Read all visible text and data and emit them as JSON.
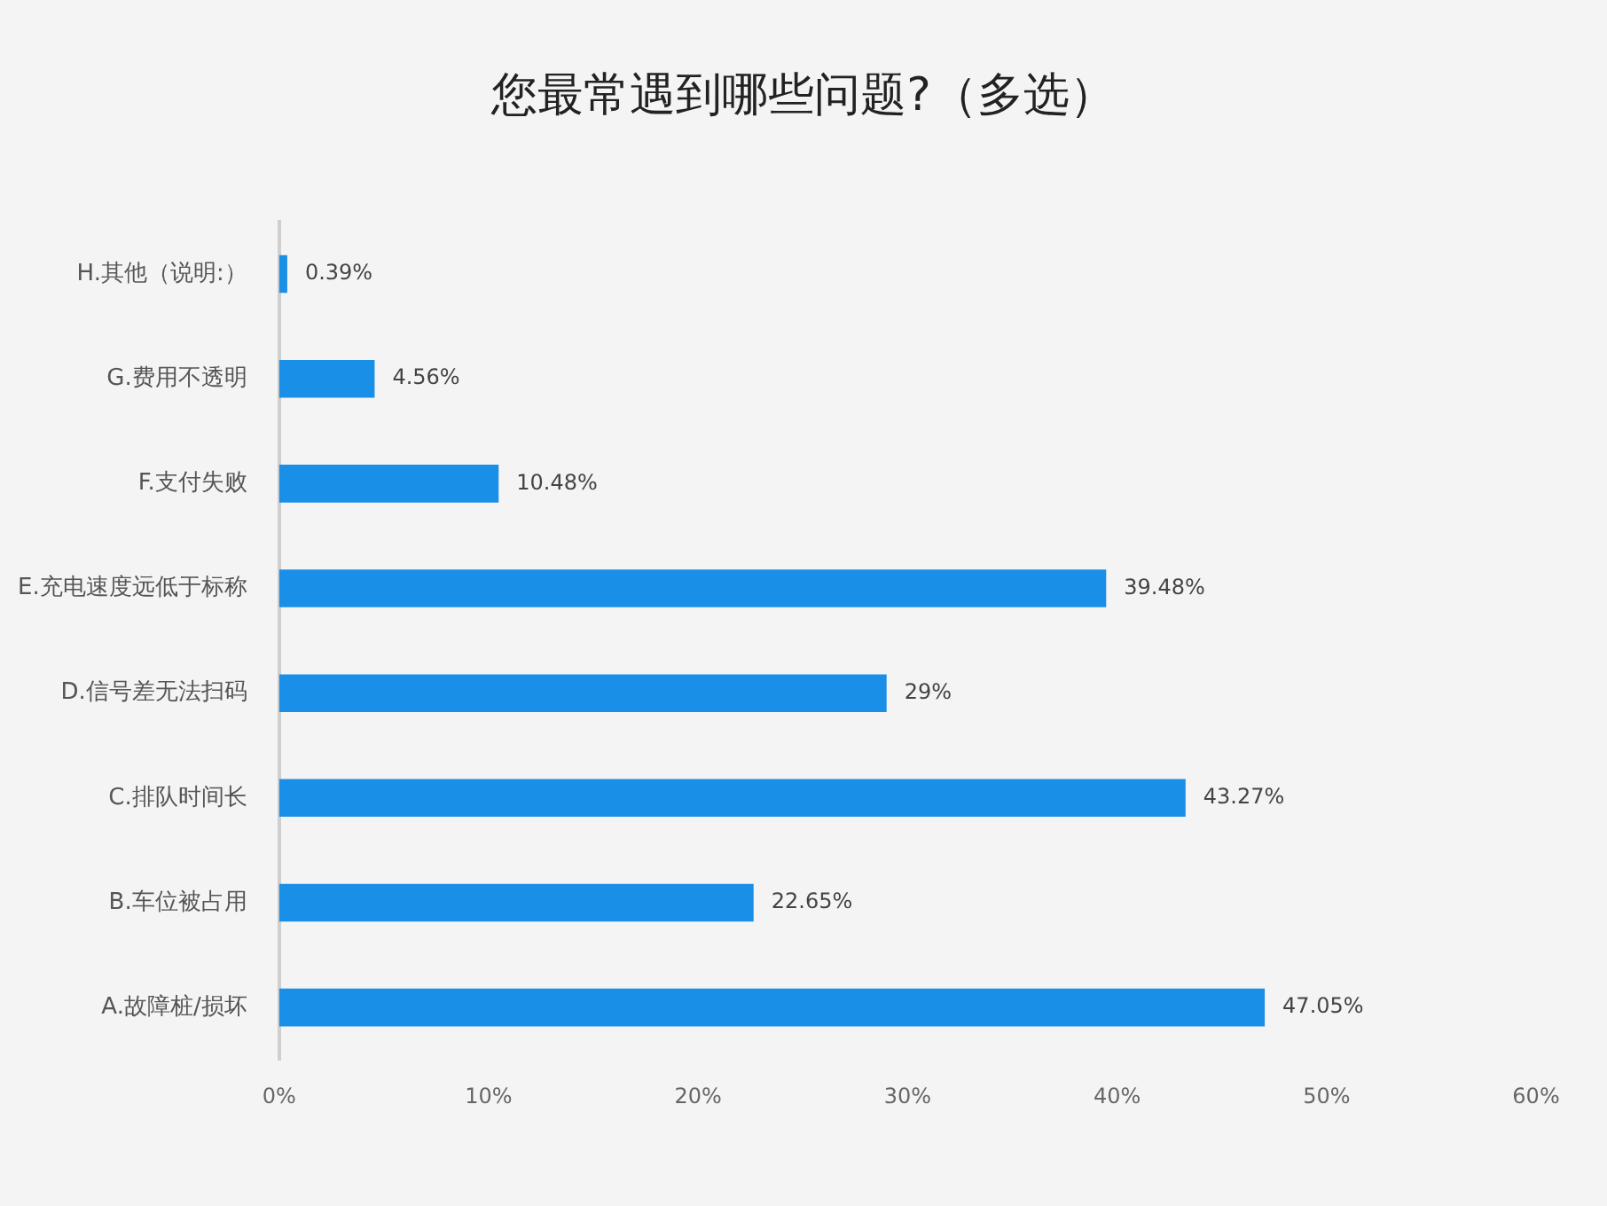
{
  "chart_data": {
    "type": "bar",
    "orientation": "horizontal",
    "title": "您最常遇到哪些问题?（多选）",
    "categories": [
      "H.其他（说明:）",
      "G.费用不透明",
      "F.支付失败",
      "E.充电速度远低于标称",
      "D.信号差无法扫码",
      "C.排队时间长",
      "B.车位被占用",
      "A.故障桩/损坏"
    ],
    "values": [
      0.39,
      4.56,
      10.48,
      39.48,
      29,
      43.27,
      22.65,
      47.05
    ],
    "value_labels": [
      "0.39%",
      "4.56%",
      "10.48%",
      "39.48%",
      "29%",
      "43.27%",
      "22.65%",
      "47.05%"
    ],
    "color": "#1a8fe8",
    "xlim": [
      0,
      60
    ],
    "xticks": [
      {
        "value": 0,
        "label": "0%"
      },
      {
        "value": 10,
        "label": "10%"
      },
      {
        "value": 20,
        "label": "20%"
      },
      {
        "value": 30,
        "label": "30%"
      },
      {
        "value": 40,
        "label": "40%"
      },
      {
        "value": 50,
        "label": "50%"
      },
      {
        "value": 60,
        "label": "60%"
      }
    ],
    "grid": false,
    "legend": false
  }
}
